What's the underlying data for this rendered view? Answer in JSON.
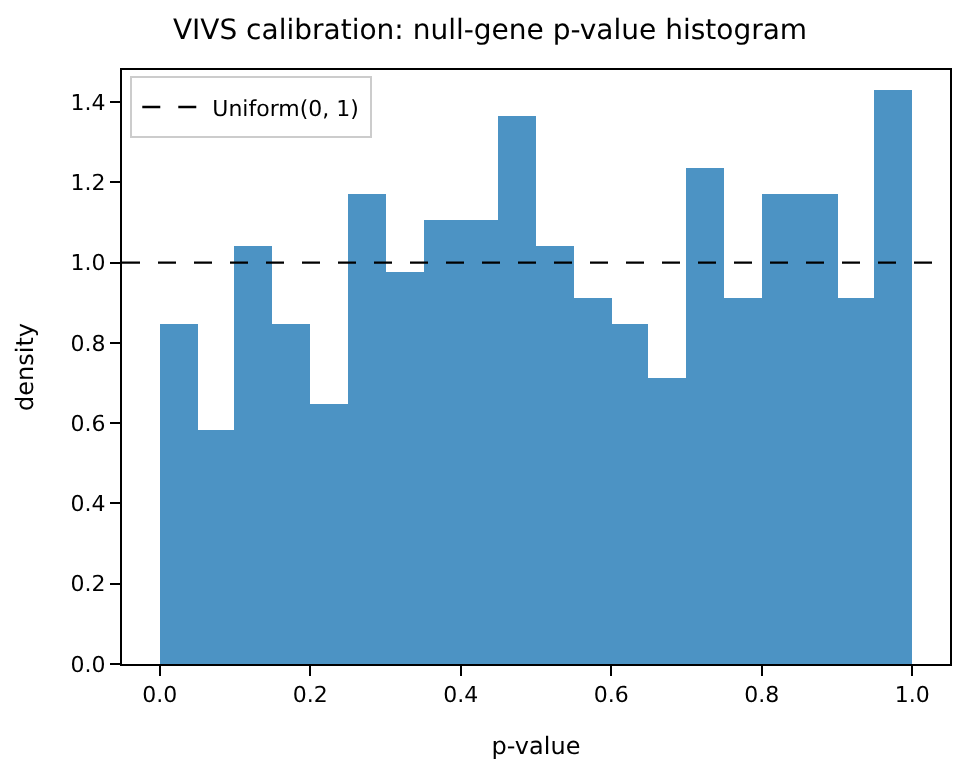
{
  "chart_data": {
    "type": "histogram",
    "title": "VIVS calibration: null-gene p-value histogram",
    "xlabel": "p-value",
    "ylabel": "density",
    "bins": [
      0,
      0.05,
      0.1,
      0.15,
      0.2,
      0.25,
      0.3,
      0.35,
      0.4,
      0.45,
      0.5,
      0.55,
      0.6,
      0.65,
      0.7,
      0.75,
      0.8,
      0.85,
      0.9,
      0.95,
      1.0
    ],
    "values": [
      0.845,
      0.585,
      1.04,
      0.845,
      0.65,
      1.17,
      0.975,
      1.105,
      1.105,
      1.365,
      1.04,
      0.91,
      0.845,
      0.715,
      1.235,
      0.91,
      1.17,
      1.17,
      0.91,
      1.43
    ],
    "color": "#4c93c4",
    "xlim": [
      -0.05,
      1.05
    ],
    "xticks": [
      {
        "value": 0,
        "label": "0.0"
      },
      0.2,
      0.4,
      0.6,
      0.8,
      {
        "value": 1,
        "label": "1.0"
      }
    ],
    "ylim": [
      0,
      1.48
    ],
    "yticks": [
      {
        "value": 0,
        "label": "0.0"
      },
      0.2,
      0.4,
      0.6,
      0.8,
      {
        "value": 1,
        "label": "1.0"
      },
      1.2,
      1.4
    ],
    "ref_lines": [
      {
        "axis": "y",
        "value": 1,
        "label": "Uniform(0, 1)",
        "color": "#000000",
        "line_style": "dashed"
      }
    ],
    "legend": "top left"
  }
}
